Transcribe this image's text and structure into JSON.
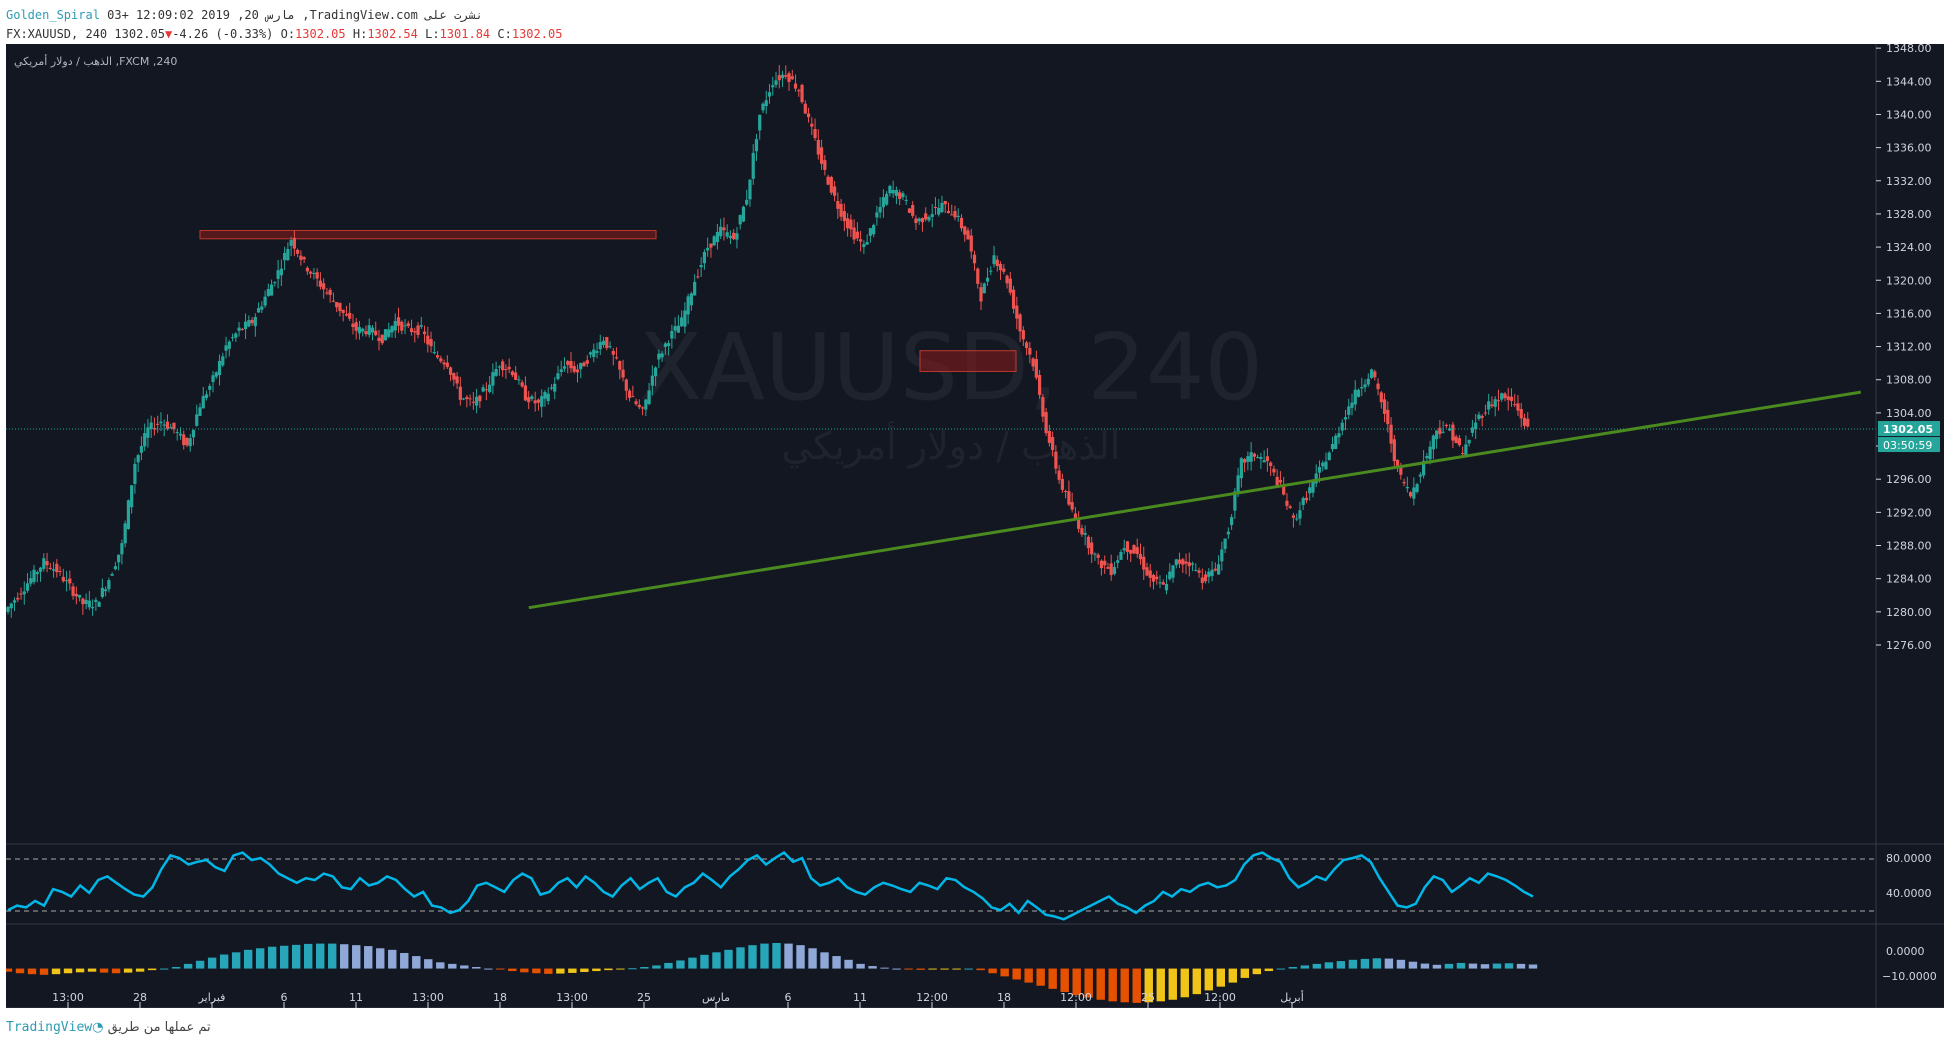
{
  "header": {
    "line1_user": "Golden_Spiral",
    "line1_rest": "03+ 12:09:02 2019 ,20 مارس ,TradingView.com نشرت على",
    "symbol": "FX:XAUUSD, 240",
    "last": "1302.05",
    "change": "-4.26 (-0.33%)",
    "o_label": "O:",
    "o": "1302.05",
    "h_label": "H:",
    "h": "1302.54",
    "l_label": "L:",
    "l": "1301.84",
    "c_label": "C:",
    "c": "1302.05"
  },
  "pane_label": "الذهب / دولار أمريكي ,FXCM ,240",
  "watermark": {
    "symbol": "XAUUSD, 240",
    "name": "الذهب / دولار أمريكي"
  },
  "price_badge": "1302.05",
  "countdown_badge": "03:50:59",
  "footer": {
    "brand": "TradingView",
    "text": "تم عملها من طريق"
  },
  "colors": {
    "up": "#26a69a",
    "down": "#ef5350",
    "bg": "#131722",
    "osc": "#00b7e8",
    "trend": "#4a8a1f",
    "zone": "#8b1a1a"
  },
  "chart_data": {
    "type": "candlestick",
    "price_ticks": [
      "1348.00",
      "1344.00",
      "1340.00",
      "1336.00",
      "1332.00",
      "1328.00",
      "1324.00",
      "1320.00",
      "1316.00",
      "1312.00",
      "1308.00",
      "1304.00",
      "1300.00",
      "1296.00",
      "1292.00",
      "1288.00",
      "1284.00",
      "1280.00",
      "1276.00"
    ],
    "ylim": [
      1272.5,
      1348.5
    ],
    "x_ticks": [
      "13:00",
      "28",
      "فبراير",
      "6",
      "11",
      "13:00",
      "18",
      "13:00",
      "25",
      "مارس",
      "6",
      "11",
      "12:00",
      "18",
      "12:00",
      "25",
      "12:00",
      "أبريل"
    ],
    "resistance_zones": [
      {
        "from_label": "فبراير",
        "to_label": "25",
        "top": 1326.0,
        "bottom": 1325.0
      },
      {
        "from_label": "12:00",
        "to_label": "18",
        "top": 1311.5,
        "bottom": 1309.0
      }
    ],
    "trendline": {
      "from": [
        6.4,
        1280.5
      ],
      "to": [
        24.9,
        1306.5
      ]
    },
    "close_path": [
      1280,
      1282,
      1284,
      1286,
      1285,
      1283,
      1281,
      1281,
      1284,
      1288,
      1298,
      1302,
      1303,
      1302,
      1300,
      1305,
      1308,
      1312,
      1314,
      1315,
      1318,
      1321,
      1325,
      1322,
      1320,
      1318,
      1316,
      1314,
      1314,
      1313,
      1315,
      1314,
      1314,
      1311,
      1310,
      1306,
      1305,
      1307,
      1310,
      1309,
      1306,
      1305,
      1307,
      1310,
      1309,
      1311,
      1313,
      1310,
      1306,
      1304,
      1310,
      1313,
      1315,
      1320,
      1324,
      1326,
      1325,
      1330,
      1340,
      1344,
      1345,
      1343,
      1338,
      1333,
      1329,
      1326,
      1324,
      1328,
      1331,
      1330,
      1327,
      1328,
      1329,
      1328,
      1325,
      1318,
      1323,
      1320,
      1314,
      1310,
      1302,
      1296,
      1292,
      1289,
      1286,
      1285,
      1288,
      1287,
      1284,
      1283,
      1286,
      1286,
      1284,
      1285,
      1290,
      1298,
      1299,
      1298,
      1295,
      1291,
      1294,
      1297,
      1300,
      1304,
      1307,
      1309,
      1304,
      1297,
      1294,
      1298,
      1302,
      1302,
      1299,
      1303,
      1305,
      1306,
      1305,
      1302
    ],
    "oscillator": {
      "levels": [
        "80.0000",
        "40.0000"
      ],
      "upper": 80,
      "lower": 20,
      "ylim": [
        12,
        92
      ],
      "values": [
        25,
        30,
        28,
        35,
        30,
        48,
        45,
        40,
        52,
        44,
        58,
        62,
        55,
        48,
        42,
        40,
        50,
        70,
        85,
        82,
        75,
        78,
        80,
        72,
        68,
        85,
        88,
        80,
        82,
        75,
        65,
        60,
        55,
        60,
        58,
        65,
        62,
        50,
        48,
        60,
        52,
        55,
        62,
        58,
        48,
        40,
        45,
        30,
        28,
        22,
        25,
        35,
        52,
        55,
        50,
        45,
        58,
        65,
        60,
        42,
        45,
        55,
        60,
        50,
        62,
        55,
        45,
        40,
        52,
        60,
        48,
        55,
        60,
        45,
        40,
        50,
        55,
        65,
        58,
        50,
        62,
        70,
        80,
        85,
        75,
        82,
        88,
        78,
        82,
        60,
        52,
        55,
        60,
        50,
        45,
        42,
        50,
        55,
        52,
        48,
        45,
        55,
        52,
        48,
        60,
        58,
        50,
        45,
        38,
        28,
        25,
        32,
        22,
        35,
        28,
        20,
        18,
        15,
        20,
        25,
        30,
        35,
        40,
        32,
        28,
        22,
        30,
        35,
        45,
        40,
        48,
        45,
        52,
        55,
        50,
        52,
        58,
        75,
        85,
        88,
        82,
        78,
        60,
        50,
        55,
        62,
        58,
        70,
        80,
        82,
        85,
        78,
        60,
        45,
        30,
        28,
        32,
        50,
        62,
        58,
        45,
        52,
        60,
        55,
        65,
        62,
        58,
        52,
        45,
        40
      ]
    },
    "histogram": {
      "levels": [
        "0.0000",
        "−10.0000"
      ],
      "ylim": [
        -12,
        13
      ],
      "values": [
        -1,
        -1.5,
        -1.8,
        -2,
        -1.8,
        -1.5,
        -1.2,
        -1,
        -1.3,
        -1.5,
        -1.3,
        -1,
        -0.5,
        0,
        0.5,
        1.5,
        2.5,
        3.5,
        4.5,
        5.2,
        6,
        6.5,
        7,
        7.3,
        7.6,
        7.9,
        8,
        8,
        7.8,
        7.5,
        7.2,
        6.5,
        6,
        5,
        4,
        3,
        2,
        1.5,
        1,
        0.5,
        0,
        -0.3,
        -0.8,
        -1.2,
        -1.5,
        -1.7,
        -1.6,
        -1.4,
        -1.1,
        -0.8,
        -0.5,
        -0.2,
        0.1,
        0.5,
        1,
        1.8,
        2.6,
        3.5,
        4.4,
        5.2,
        6,
        6.8,
        7.5,
        8,
        8.2,
        8,
        7.5,
        6.5,
        5.2,
        4,
        2.8,
        1.5,
        0.8,
        0.3,
        0,
        -0.2,
        -0.4,
        -0.3,
        -0.2,
        -0.1,
        0,
        -0.5,
        -1.5,
        -2.5,
        -3.5,
        -4.5,
        -5.5,
        -6.5,
        -7.5,
        -8.5,
        -9.3,
        -10,
        -10.5,
        -10.8,
        -11,
        -10.8,
        -10.5,
        -10,
        -9.2,
        -8.2,
        -7,
        -5.8,
        -4.5,
        -3,
        -1.8,
        -0.8,
        0,
        0.5,
        1,
        1.5,
        2,
        2.4,
        2.8,
        3.1,
        3.3,
        3.2,
        2.8,
        2.2,
        1.6,
        1.2,
        1.5,
        1.8,
        1.6,
        1.4,
        1.6,
        1.7,
        1.5,
        1.3
      ]
    }
  }
}
